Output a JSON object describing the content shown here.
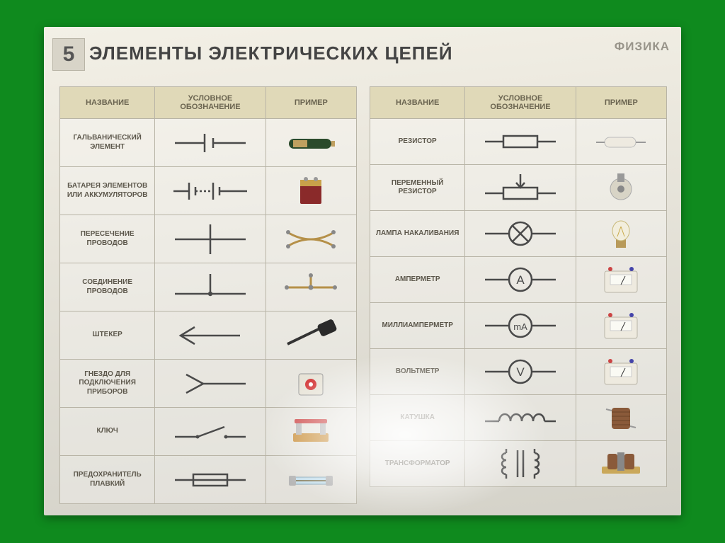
{
  "page": {
    "badge": "5",
    "title": "ЭЛЕМЕНТЫ ЭЛЕКТРИЧЕСКИХ ЦЕПЕЙ",
    "subject": "ФИЗИКА",
    "stroke_color": "#4a4a4a",
    "header_bg": "#e0d9b8",
    "border_color": "#b8b4a6"
  },
  "columns": {
    "name": "НАЗВАНИЕ",
    "symbol": "УСЛОВНОЕ ОБОЗНАЧЕНИЕ",
    "example": "ПРИМЕР"
  },
  "left_rows": [
    {
      "name": "ГАЛЬВАНИЧЕСКИЙ ЭЛЕМЕНТ",
      "symbol": "cell",
      "example": "aa-battery"
    },
    {
      "name": "БАТАРЕЯ ЭЛЕМЕНТОВ ИЛИ АККУМУЛЯТОРОВ",
      "symbol": "battery",
      "example": "9v-battery"
    },
    {
      "name": "ПЕРЕСЕЧЕНИЕ ПРОВОДОВ",
      "symbol": "cross",
      "example": "crossed-wires"
    },
    {
      "name": "СОЕДИНЕНИЕ ПРОВОДОВ",
      "symbol": "junction",
      "example": "joined-wires"
    },
    {
      "name": "ШТЕКЕР",
      "symbol": "plug",
      "example": "jack-plug"
    },
    {
      "name": "ГНЕЗДО ДЛЯ ПОДКЛЮЧЕНИЯ ПРИБОРОВ",
      "symbol": "socket",
      "example": "socket-panel"
    },
    {
      "name": "КЛЮЧ",
      "symbol": "switch",
      "example": "knife-switch"
    },
    {
      "name": "ПРЕДОХРАНИТЕЛЬ ПЛАВКИЙ",
      "symbol": "fuse",
      "example": "glass-fuse"
    }
  ],
  "right_rows": [
    {
      "name": "РЕЗИСТОР",
      "symbol": "resistor",
      "example": "resistor-comp"
    },
    {
      "name": "ПЕРЕМЕННЫЙ РЕЗИСТОР",
      "symbol": "var-resistor",
      "example": "potentiometer"
    },
    {
      "name": "ЛАМПА НАКАЛИВАНИЯ",
      "symbol": "lamp",
      "example": "bulb"
    },
    {
      "name": "АМПЕРМЕТР",
      "symbol": "ammeter",
      "letter": "A",
      "example": "meter"
    },
    {
      "name": "МИЛЛИАМПЕРМЕТР",
      "symbol": "milliammeter",
      "letter": "mA",
      "example": "meter"
    },
    {
      "name": "ВОЛЬТМЕТР",
      "symbol": "voltmeter",
      "letter": "V",
      "example": "meter"
    },
    {
      "name": "КАТУШКА",
      "symbol": "coil",
      "example": "coil-comp"
    },
    {
      "name": "ТРАНСФОРМАТОР",
      "symbol": "transformer",
      "example": "transformer-comp"
    }
  ]
}
